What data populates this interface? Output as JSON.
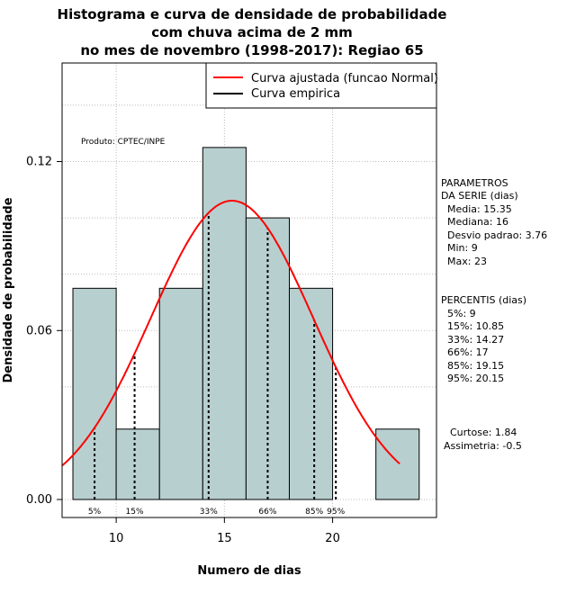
{
  "chart_data": {
    "type": "histogram",
    "title": [
      "Histograma e curva de densidade de probabilidade",
      "com chuva acima de 2 mm",
      "no mes de novembro (1998-2017): Regiao 65"
    ],
    "xlabel": "Numero de dias",
    "ylabel": "Densidade de probabilidade",
    "xlim": [
      7.5,
      24.8
    ],
    "ylim": [
      0,
      0.155
    ],
    "xticks": [
      10,
      15,
      20
    ],
    "yticks": [
      0.0,
      0.06,
      0.12
    ],
    "ytick_labels": [
      "0.00",
      "0.06",
      "0.12"
    ],
    "bins": [
      {
        "from": 8,
        "to": 10,
        "density": 0.075
      },
      {
        "from": 10,
        "to": 12,
        "density": 0.025
      },
      {
        "from": 12,
        "to": 14,
        "density": 0.075
      },
      {
        "from": 14,
        "to": 16,
        "density": 0.125
      },
      {
        "from": 16,
        "to": 18,
        "density": 0.1
      },
      {
        "from": 18,
        "to": 20,
        "density": 0.075
      },
      {
        "from": 20,
        "to": 22,
        "density": 0.0
      },
      {
        "from": 22,
        "to": 24,
        "density": 0.025
      }
    ],
    "normal_curve": {
      "mean": 15.35,
      "sd": 3.76,
      "x_from": 7.5,
      "x_to": 23.1,
      "color": "#ff0000",
      "label": "Curva ajustada (funcao Normal)"
    },
    "empirical_label": "Curva empirica",
    "percentiles": [
      {
        "label": "5%",
        "x": 9
      },
      {
        "label": "15%",
        "x": 10.85
      },
      {
        "label": "33%",
        "x": 14.27
      },
      {
        "label": "66%",
        "x": 17
      },
      {
        "label": "85%",
        "x": 19.15
      },
      {
        "label": "95%",
        "x": 20.15
      }
    ],
    "bar_color": "#b8cfcf",
    "grid": true
  },
  "produto": "Produto: CPTEC/INPE",
  "parametros": {
    "heading": [
      "PARAMETROS",
      "DA SERIE (dias)"
    ],
    "lines": [
      "Media: 15.35",
      "Mediana: 16",
      "Desvio padrao: 3.76",
      "Min: 9",
      "Max: 23"
    ]
  },
  "percentis": {
    "heading": "PERCENTIS (dias)",
    "lines": [
      "5%: 9",
      "15%: 10.85",
      "33%: 14.27",
      "66%: 17",
      "85%: 19.15",
      "95%: 20.15"
    ]
  },
  "stats": {
    "lines": [
      "Curtose: 1.84",
      "Assimetria: -0.5"
    ]
  }
}
